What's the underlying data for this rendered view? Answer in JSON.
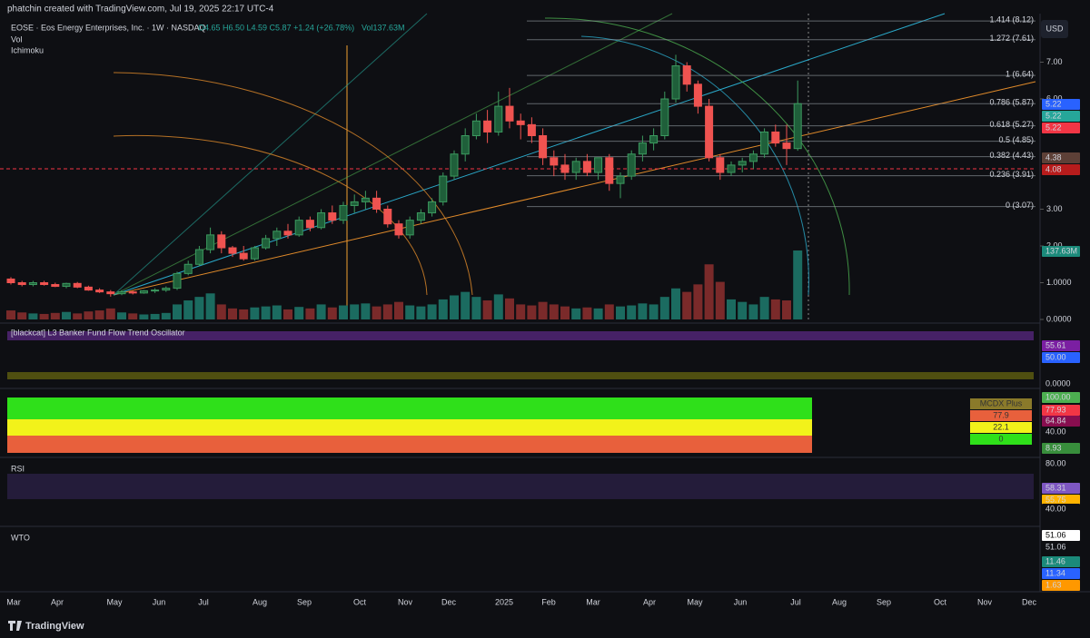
{
  "header": {
    "credit": "phatchin created with TradingView.com, Jul 19, 2025 22:17 UTC-4",
    "symbol": "EOSE · Eos Energy Enterprises, Inc. · 1W · NASDAQ",
    "ohlc": "O4.65 H6.50 L4.59 C5.87 +1.24 (+26.78%)",
    "volume": "Vol137.63M",
    "vol_label": "Vol",
    "ichimoku": "Ichimoku",
    "currency": "USD"
  },
  "price": {
    "candles": [
      [
        1.1,
        1.15,
        0.95,
        1.0
      ],
      [
        1.0,
        1.05,
        0.9,
        0.95
      ],
      [
        0.95,
        1.05,
        0.9,
        1.0
      ],
      [
        1.0,
        1.05,
        0.92,
        0.95
      ],
      [
        0.95,
        1.0,
        0.88,
        0.9
      ],
      [
        0.9,
        1.0,
        0.85,
        0.98
      ],
      [
        0.98,
        1.02,
        0.85,
        0.88
      ],
      [
        0.88,
        0.92,
        0.78,
        0.8
      ],
      [
        0.8,
        0.85,
        0.72,
        0.75
      ],
      [
        0.75,
        0.8,
        0.62,
        0.7
      ],
      [
        0.7,
        0.8,
        0.66,
        0.75
      ],
      [
        0.75,
        0.78,
        0.68,
        0.72
      ],
      [
        0.72,
        0.8,
        0.7,
        0.78
      ],
      [
        0.78,
        0.85,
        0.72,
        0.8
      ],
      [
        0.8,
        0.9,
        0.75,
        0.85
      ],
      [
        0.85,
        1.3,
        0.8,
        1.25
      ],
      [
        1.25,
        1.6,
        1.2,
        1.5
      ],
      [
        1.5,
        2.0,
        1.45,
        1.9
      ],
      [
        1.9,
        2.5,
        1.8,
        2.3
      ],
      [
        2.3,
        2.4,
        1.8,
        1.95
      ],
      [
        1.95,
        2.0,
        1.7,
        1.8
      ],
      [
        1.8,
        2.0,
        1.6,
        1.65
      ],
      [
        1.65,
        2.0,
        1.6,
        1.95
      ],
      [
        1.95,
        2.3,
        1.9,
        2.2
      ],
      [
        2.2,
        2.5,
        2.0,
        2.4
      ],
      [
        2.4,
        2.6,
        2.2,
        2.3
      ],
      [
        2.3,
        2.8,
        2.25,
        2.7
      ],
      [
        2.7,
        2.8,
        2.4,
        2.5
      ],
      [
        2.5,
        3.0,
        2.45,
        2.9
      ],
      [
        2.9,
        3.1,
        2.6,
        2.7
      ],
      [
        2.7,
        3.2,
        2.6,
        3.1
      ],
      [
        3.1,
        3.4,
        2.9,
        3.2
      ],
      [
        3.2,
        3.5,
        3.0,
        3.3
      ],
      [
        3.3,
        3.5,
        2.9,
        3.0
      ],
      [
        3.0,
        3.1,
        2.5,
        2.6
      ],
      [
        2.6,
        2.7,
        2.2,
        2.3
      ],
      [
        2.3,
        2.8,
        2.2,
        2.7
      ],
      [
        2.7,
        3.0,
        2.6,
        2.9
      ],
      [
        2.9,
        3.3,
        2.8,
        3.2
      ],
      [
        3.2,
        4.0,
        3.1,
        3.9
      ],
      [
        3.9,
        4.6,
        3.8,
        4.5
      ],
      [
        4.5,
        5.2,
        4.3,
        5.0
      ],
      [
        5.0,
        5.6,
        4.9,
        5.4
      ],
      [
        5.4,
        5.7,
        4.8,
        5.1
      ],
      [
        5.1,
        6.2,
        5.0,
        5.8
      ],
      [
        5.8,
        6.3,
        5.2,
        5.4
      ],
      [
        5.4,
        5.6,
        4.9,
        5.3
      ],
      [
        5.3,
        5.5,
        4.8,
        5.0
      ],
      [
        5.0,
        5.2,
        4.2,
        4.4
      ],
      [
        4.4,
        4.6,
        3.9,
        4.2
      ],
      [
        4.2,
        4.5,
        3.8,
        4.0
      ],
      [
        4.0,
        4.4,
        3.8,
        4.3
      ],
      [
        4.3,
        4.5,
        3.9,
        4.0
      ],
      [
        4.0,
        4.4,
        3.8,
        4.4
      ],
      [
        4.4,
        4.5,
        3.5,
        3.7
      ],
      [
        3.7,
        4.0,
        3.3,
        3.9
      ],
      [
        3.9,
        4.6,
        3.8,
        4.5
      ],
      [
        4.5,
        5.0,
        4.3,
        4.8
      ],
      [
        4.8,
        5.2,
        4.6,
        5.0
      ],
      [
        5.0,
        6.2,
        4.9,
        6.0
      ],
      [
        6.0,
        7.2,
        5.9,
        6.9
      ],
      [
        6.9,
        7.0,
        6.2,
        6.4
      ],
      [
        6.4,
        6.5,
        5.6,
        5.8
      ],
      [
        5.8,
        6.0,
        4.3,
        4.4
      ],
      [
        4.4,
        4.5,
        3.8,
        4.0
      ],
      [
        4.0,
        4.3,
        3.9,
        4.2
      ],
      [
        4.2,
        4.4,
        4.0,
        4.3
      ],
      [
        4.3,
        4.6,
        4.1,
        4.5
      ],
      [
        4.5,
        5.2,
        4.4,
        5.1
      ],
      [
        5.1,
        5.3,
        4.7,
        4.8
      ],
      [
        4.8,
        5.3,
        4.2,
        4.65
      ],
      [
        4.65,
        6.5,
        4.59,
        5.87
      ]
    ],
    "volume": [
      18,
      14,
      12,
      11,
      13,
      15,
      12,
      16,
      18,
      22,
      14,
      12,
      10,
      11,
      13,
      30,
      38,
      45,
      52,
      30,
      22,
      20,
      24,
      26,
      28,
      20,
      25,
      22,
      30,
      24,
      28,
      30,
      32,
      26,
      30,
      35,
      28,
      26,
      30,
      40,
      48,
      55,
      45,
      38,
      50,
      42,
      30,
      28,
      35,
      30,
      26,
      22,
      24,
      22,
      30,
      26,
      28,
      32,
      30,
      45,
      62,
      55,
      70,
      110,
      75,
      40,
      35,
      30,
      45,
      40,
      38,
      137.63
    ],
    "axis": [
      {
        "value": 7,
        "label": "7.00"
      },
      {
        "value": 6,
        "label": "6.00"
      },
      {
        "value": 3,
        "label": "3.00"
      },
      {
        "value": 2,
        "label": "2.00"
      },
      {
        "value": 1,
        "label": "1.0000"
      },
      {
        "value": 0,
        "label": "0.0000"
      }
    ],
    "fib": [
      {
        "label": "1.414 (8.12)",
        "price": 8.12
      },
      {
        "label": "1.272 (7.61)",
        "price": 7.61
      },
      {
        "label": "1 (6.64)",
        "price": 6.64
      },
      {
        "label": "0.786 (5.87)",
        "price": 5.87
      },
      {
        "label": "0.618 (5.27)",
        "price": 5.27
      },
      {
        "label": "0.5 (4.85)",
        "price": 4.85
      },
      {
        "label": "0.382 (4.43)",
        "price": 4.43
      },
      {
        "label": "0.236 (3.91)",
        "price": 3.91
      },
      {
        "label": "0 (3.07)",
        "price": 3.07
      }
    ],
    "badges": [
      {
        "label": "5.22",
        "color": "#2962ff"
      },
      {
        "label": "5.22",
        "color": "#26a69a"
      },
      {
        "label": "5.22",
        "color": "#f23645"
      },
      {
        "label": "4.38",
        "color": "#5d4037"
      },
      {
        "label": "4.08",
        "color": "#b71c1c"
      },
      {
        "label": "137.63M",
        "color": "#1b8a7a"
      }
    ]
  },
  "panels": [
    {
      "title": "[blackcat] L3 Banker Fund Flow Trend Oscillator",
      "labels": [
        {
          "label": "55.61",
          "color": "#7b1fa2"
        },
        {
          "label": "50.00",
          "color": "#2962ff"
        },
        {
          "label": "0.0000",
          "color": null
        }
      ]
    },
    {
      "title": "",
      "labels": [
        {
          "label": "100.00",
          "color": "#4caf50"
        },
        {
          "label": "77.93",
          "color": "#f23645"
        },
        {
          "label": "64.84",
          "color": "#880e4f"
        },
        {
          "label": "40.00",
          "color": null
        },
        {
          "label": "8.93",
          "color": "#388e3c"
        }
      ],
      "legend": [
        "MCDX Plus",
        "77.9",
        "22.1",
        "0"
      ]
    },
    {
      "title": "RSI",
      "labels": [
        {
          "label": "80.00",
          "color": null
        },
        {
          "label": "58.31",
          "color": "#7e57c2"
        },
        {
          "label": "55.75",
          "color": "#ffb300"
        },
        {
          "label": "40.00",
          "color": null
        }
      ]
    },
    {
      "title": "WTO",
      "labels": [
        {
          "label": "51.06",
          "color": "#ffffff"
        },
        {
          "label": "51.06",
          "color": null
        },
        {
          "label": "11.46",
          "color": "#1b8a7a"
        },
        {
          "label": "11.34",
          "color": "#2962ff"
        },
        {
          "label": "1.63",
          "color": "#ff9800"
        }
      ]
    }
  ],
  "time_axis": [
    "Mar",
    "Apr",
    "May",
    "Jun",
    "Jul",
    "Aug",
    "Sep",
    "Oct",
    "Nov",
    "Dec",
    "2025",
    "Feb",
    "Mar",
    "Apr",
    "May",
    "Jun",
    "Jul",
    "Aug",
    "Sep",
    "Oct",
    "Nov",
    "Dec"
  ],
  "footer": "TradingView"
}
